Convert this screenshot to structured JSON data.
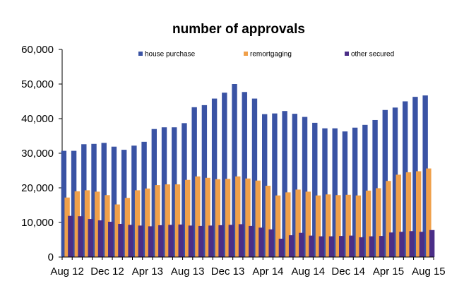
{
  "chart_data": {
    "type": "bar",
    "title": "number of approvals",
    "xlabel": "",
    "ylabel": "",
    "ylim": [
      0,
      60000
    ],
    "yticks": [
      0,
      10000,
      20000,
      30000,
      40000,
      50000,
      60000
    ],
    "ytick_labels": [
      "0",
      "10,000",
      "20,000",
      "30,000",
      "40,000",
      "50,000",
      "60,000"
    ],
    "xtick_labels": [
      {
        "index": 0,
        "label": "Aug 12"
      },
      {
        "index": 4,
        "label": "Dec 12"
      },
      {
        "index": 8,
        "label": "Apr 13"
      },
      {
        "index": 12,
        "label": "Aug 13"
      },
      {
        "index": 16,
        "label": "Dec 13"
      },
      {
        "index": 20,
        "label": "Apr 14"
      },
      {
        "index": 24,
        "label": "Aug 14"
      },
      {
        "index": 28,
        "label": "Dec 14"
      },
      {
        "index": 32,
        "label": "Apr 15"
      },
      {
        "index": 36,
        "label": "Aug 15"
      }
    ],
    "legend_position": "top",
    "categories": [
      "Aug 12",
      "Sep 12",
      "Oct 12",
      "Nov 12",
      "Dec 12",
      "Jan 13",
      "Feb 13",
      "Mar 13",
      "Apr 13",
      "May 13",
      "Jun 13",
      "Jul 13",
      "Aug 13",
      "Sep 13",
      "Oct 13",
      "Nov 13",
      "Dec 13",
      "Jan 14",
      "Feb 14",
      "Mar 14",
      "Apr 14",
      "May 14",
      "Jun 14",
      "Jul 14",
      "Aug 14",
      "Sep 14",
      "Oct 14",
      "Nov 14",
      "Dec 14",
      "Jan 15",
      "Feb 15",
      "Mar 15",
      "Apr 15",
      "May 15",
      "Jun 15",
      "Jul 15",
      "Aug 15"
    ],
    "series": [
      {
        "name": "house purchase",
        "color": "#3a53a4",
        "values": [
          30700,
          30700,
          32600,
          32700,
          33000,
          31900,
          31000,
          32200,
          33300,
          37000,
          37500,
          37500,
          38700,
          43300,
          43900,
          45800,
          47500,
          50000,
          47700,
          45800,
          41300,
          41500,
          42200,
          41400,
          40500,
          38800,
          37200,
          37200,
          36300,
          37400,
          38200,
          39600,
          42500,
          43200,
          45000,
          46300,
          46700
        ]
      },
      {
        "name": "remortgaging",
        "color": "#f0a04a",
        "values": [
          17200,
          19000,
          19300,
          18900,
          17900,
          15200,
          17100,
          19300,
          19800,
          20800,
          21000,
          21000,
          22300,
          23300,
          22900,
          22500,
          22600,
          23300,
          22700,
          22100,
          20600,
          17800,
          18700,
          19500,
          18900,
          17800,
          18100,
          17900,
          18000,
          17800,
          19200,
          19900,
          22000,
          23800,
          24500,
          24800,
          25600
        ]
      },
      {
        "name": "other secured",
        "color": "#4b2e87",
        "values": [
          11900,
          11800,
          11000,
          10600,
          10200,
          9600,
          9300,
          9100,
          8900,
          9200,
          9300,
          9400,
          9100,
          9000,
          9100,
          9200,
          9300,
          9500,
          9000,
          8500,
          8000,
          5300,
          6300,
          7000,
          6200,
          6000,
          6000,
          6100,
          6200,
          5700,
          6000,
          6100,
          7100,
          7300,
          7500,
          7300,
          7800
        ]
      }
    ]
  }
}
